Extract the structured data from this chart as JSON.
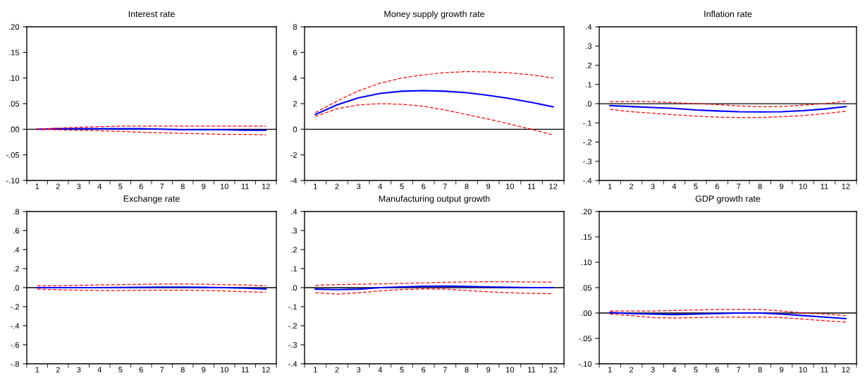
{
  "chart_data": [
    {
      "type": "line",
      "title": "Interest rate",
      "categories": [
        "1",
        "2",
        "3",
        "4",
        "5",
        "6",
        "7",
        "8",
        "9",
        "10",
        "11",
        "12"
      ],
      "ylim": [
        -0.1,
        0.2
      ],
      "yticks": [
        {
          "value": -0.1,
          "label": "-.10"
        },
        {
          "value": -0.05,
          "label": "-.05"
        },
        {
          "value": 0,
          "label": ".00"
        },
        {
          "value": 0.05,
          "label": ".05"
        },
        {
          "value": 0.1,
          "label": ".10"
        },
        {
          "value": 0.15,
          "label": ".15"
        },
        {
          "value": 0.2,
          "label": ".20"
        }
      ],
      "grid": false,
      "legend": false,
      "ref_lines": [
        {
          "axis": "y",
          "value": 0,
          "color": "#000000"
        }
      ],
      "series": [
        {
          "color": "#0000ff",
          "line_style": "solid",
          "values": [
            0,
            0.001,
            0.001,
            0.001,
            0.001,
            0.001,
            0,
            -0.001,
            -0.001,
            -0.001,
            -0.002,
            -0.002
          ]
        },
        {
          "color": "#ff0000",
          "line_style": "dashed",
          "values": [
            0,
            0.002,
            0.004,
            0.005,
            0.006,
            0.006,
            0.006,
            0.006,
            0.006,
            0.006,
            0.006,
            0.006
          ]
        },
        {
          "color": "#ff0000",
          "line_style": "dashed",
          "values": [
            0,
            -0.001,
            -0.002,
            -0.003,
            -0.004,
            -0.006,
            -0.007,
            -0.008,
            -0.009,
            -0.01,
            -0.01,
            -0.011
          ]
        }
      ]
    },
    {
      "type": "line",
      "title": "Money supply growth rate",
      "categories": [
        "1",
        "2",
        "3",
        "4",
        "5",
        "6",
        "7",
        "8",
        "9",
        "10",
        "11",
        "12"
      ],
      "ylim": [
        -4,
        8
      ],
      "yticks": [
        -4,
        -2,
        0,
        2,
        4,
        6,
        8
      ],
      "grid": false,
      "legend": false,
      "ref_lines": [
        {
          "axis": "y",
          "value": 0,
          "color": "#000000"
        }
      ],
      "series": [
        {
          "color": "#0000ff",
          "line_style": "solid",
          "values": [
            1.15,
            1.9,
            2.45,
            2.8,
            2.97,
            3.02,
            2.97,
            2.85,
            2.65,
            2.4,
            2.1,
            1.75
          ]
        },
        {
          "color": "#ff0000",
          "line_style": "dashed",
          "values": [
            1.3,
            2.2,
            3.0,
            3.6,
            4.0,
            4.25,
            4.42,
            4.5,
            4.48,
            4.4,
            4.25,
            4.0
          ]
        },
        {
          "color": "#ff0000",
          "line_style": "dashed",
          "values": [
            1.0,
            1.6,
            1.9,
            2.0,
            1.95,
            1.8,
            1.5,
            1.15,
            0.8,
            0.4,
            0.0,
            -0.45
          ]
        }
      ]
    },
    {
      "type": "line",
      "title": "Inflation rate",
      "categories": [
        "1",
        "2",
        "3",
        "4",
        "5",
        "6",
        "7",
        "8",
        "9",
        "10",
        "11",
        "12"
      ],
      "ylim": [
        -0.4,
        0.4
      ],
      "yticks": [
        {
          "value": -0.4,
          "label": "-.4"
        },
        {
          "value": -0.3,
          "label": "-.3"
        },
        {
          "value": -0.2,
          "label": "-.2"
        },
        {
          "value": -0.1,
          "label": "-.1"
        },
        {
          "value": 0,
          "label": ".0"
        },
        {
          "value": 0.1,
          "label": ".1"
        },
        {
          "value": 0.2,
          "label": ".2"
        },
        {
          "value": 0.3,
          "label": ".3"
        },
        {
          "value": 0.4,
          "label": ".4"
        }
      ],
      "grid": false,
      "legend": false,
      "ref_lines": [
        {
          "axis": "y",
          "value": 0,
          "color": "#000000"
        }
      ],
      "series": [
        {
          "color": "#0000ff",
          "line_style": "solid",
          "values": [
            -0.01,
            -0.015,
            -0.02,
            -0.025,
            -0.033,
            -0.038,
            -0.042,
            -0.043,
            -0.042,
            -0.037,
            -0.028,
            -0.015
          ]
        },
        {
          "color": "#ff0000",
          "line_style": "dashed",
          "values": [
            0.01,
            0.012,
            0.01,
            0.005,
            0.0,
            -0.005,
            -0.012,
            -0.016,
            -0.015,
            -0.008,
            0.0,
            0.013
          ]
        },
        {
          "color": "#ff0000",
          "line_style": "dashed",
          "values": [
            -0.03,
            -0.042,
            -0.05,
            -0.058,
            -0.065,
            -0.07,
            -0.072,
            -0.072,
            -0.068,
            -0.062,
            -0.052,
            -0.04
          ]
        }
      ]
    },
    {
      "type": "line",
      "title": "Exchange rate",
      "categories": [
        "1",
        "2",
        "3",
        "4",
        "5",
        "6",
        "7",
        "8",
        "9",
        "10",
        "11",
        "12"
      ],
      "ylim": [
        -0.8,
        0.8
      ],
      "yticks": [
        {
          "value": -0.8,
          "label": "-.8"
        },
        {
          "value": -0.6,
          "label": "-.6"
        },
        {
          "value": -0.4,
          "label": "-.4"
        },
        {
          "value": -0.2,
          "label": "-.2"
        },
        {
          "value": 0,
          "label": ".0"
        },
        {
          "value": 0.2,
          "label": ".2"
        },
        {
          "value": 0.4,
          "label": ".4"
        },
        {
          "value": 0.6,
          "label": ".6"
        },
        {
          "value": 0.8,
          "label": ".8"
        }
      ],
      "grid": false,
      "legend": false,
      "ref_lines": [
        {
          "axis": "y",
          "value": 0,
          "color": "#000000"
        }
      ],
      "series": [
        {
          "color": "#0000ff",
          "line_style": "solid",
          "values": [
            0,
            0,
            0,
            0,
            0.002,
            0.003,
            0.005,
            0.005,
            0.003,
            0,
            -0.005,
            -0.015
          ]
        },
        {
          "color": "#ff0000",
          "line_style": "dashed",
          "values": [
            0.02,
            0.02,
            0.025,
            0.028,
            0.032,
            0.035,
            0.038,
            0.038,
            0.036,
            0.032,
            0.028,
            0.02
          ]
        },
        {
          "color": "#ff0000",
          "line_style": "dashed",
          "values": [
            -0.015,
            -0.022,
            -0.027,
            -0.03,
            -0.03,
            -0.028,
            -0.026,
            -0.026,
            -0.03,
            -0.035,
            -0.042,
            -0.05
          ]
        }
      ]
    },
    {
      "type": "line",
      "title": "Manufacturing output growth",
      "categories": [
        "1",
        "2",
        "3",
        "4",
        "5",
        "6",
        "7",
        "8",
        "9",
        "10",
        "11",
        "12"
      ],
      "ylim": [
        -0.4,
        0.4
      ],
      "yticks": [
        {
          "value": -0.4,
          "label": "-.4"
        },
        {
          "value": -0.3,
          "label": "-.3"
        },
        {
          "value": -0.2,
          "label": "-.2"
        },
        {
          "value": -0.1,
          "label": "-.1"
        },
        {
          "value": 0,
          "label": ".0"
        },
        {
          "value": 0.1,
          "label": ".1"
        },
        {
          "value": 0.2,
          "label": ".2"
        },
        {
          "value": 0.3,
          "label": ".3"
        },
        {
          "value": 0.4,
          "label": ".4"
        }
      ],
      "grid": false,
      "legend": false,
      "ref_lines": [
        {
          "axis": "y",
          "value": 0,
          "color": "#000000"
        }
      ],
      "series": [
        {
          "color": "#0000ff",
          "line_style": "solid",
          "values": [
            -0.008,
            -0.01,
            -0.008,
            0,
            0.004,
            0.007,
            0.008,
            0.006,
            0.004,
            0.002,
            0,
            0
          ]
        },
        {
          "color": "#ff0000",
          "line_style": "dashed",
          "values": [
            0.012,
            0.016,
            0.018,
            0.02,
            0.022,
            0.025,
            0.028,
            0.03,
            0.031,
            0.031,
            0.03,
            0.029
          ]
        },
        {
          "color": "#ff0000",
          "line_style": "dashed",
          "values": [
            -0.026,
            -0.034,
            -0.027,
            -0.017,
            -0.01,
            -0.007,
            -0.008,
            -0.015,
            -0.022,
            -0.027,
            -0.03,
            -0.032
          ]
        }
      ]
    },
    {
      "type": "line",
      "title": "GDP growth rate",
      "categories": [
        "1",
        "2",
        "3",
        "4",
        "5",
        "6",
        "7",
        "8",
        "9",
        "10",
        "11",
        "12"
      ],
      "ylim": [
        -0.1,
        0.2
      ],
      "yticks": [
        {
          "value": -0.1,
          "label": "-.10"
        },
        {
          "value": -0.05,
          "label": "-.05"
        },
        {
          "value": 0,
          "label": ".00"
        },
        {
          "value": 0.05,
          "label": ".05"
        },
        {
          "value": 0.1,
          "label": ".10"
        },
        {
          "value": 0.15,
          "label": ".15"
        },
        {
          "value": 0.2,
          "label": ".20"
        }
      ],
      "grid": false,
      "legend": false,
      "ref_lines": [
        {
          "axis": "y",
          "value": 0,
          "color": "#000000"
        }
      ],
      "series": [
        {
          "color": "#0000ff",
          "line_style": "solid",
          "values": [
            0.001,
            -0.001,
            -0.002,
            -0.003,
            -0.002,
            -0.001,
            0,
            0,
            -0.002,
            -0.005,
            -0.008,
            -0.011
          ]
        },
        {
          "color": "#ff0000",
          "line_style": "dashed",
          "values": [
            0.004,
            0.004,
            0.004,
            0.005,
            0.006,
            0.007,
            0.007,
            0.007,
            0.004,
            0,
            -0.002,
            -0.005
          ]
        },
        {
          "color": "#ff0000",
          "line_style": "dashed",
          "values": [
            -0.002,
            -0.005,
            -0.009,
            -0.01,
            -0.009,
            -0.008,
            -0.008,
            -0.008,
            -0.009,
            -0.012,
            -0.015,
            -0.018
          ]
        }
      ]
    }
  ]
}
